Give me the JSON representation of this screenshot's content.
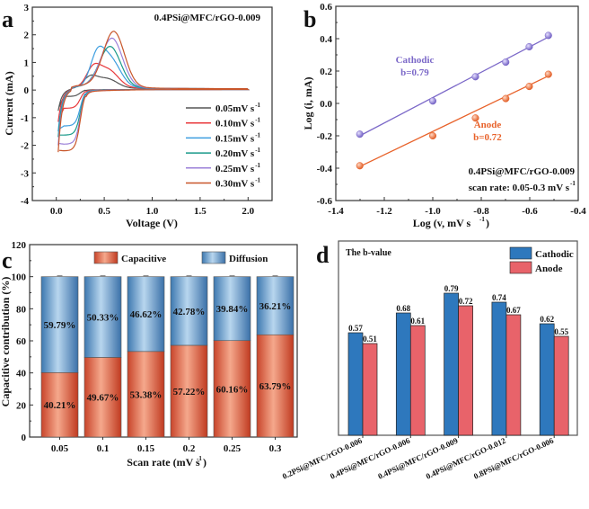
{
  "chart_data": [
    {
      "panel": "a",
      "type": "line",
      "title": "0.4PSi@MFC/rGO-0.009",
      "xlabel": "Voltage (V)",
      "ylabel": "Current (mA)",
      "xlim": [
        -0.25,
        2.25
      ],
      "ylim": [
        -4,
        3
      ],
      "xticks": [
        "0.0",
        "0.5",
        "1.0",
        "1.5",
        "2.0"
      ],
      "xtick_values": [
        0.0,
        0.5,
        1.0,
        1.5,
        2.0
      ],
      "yticks": [
        "-4",
        "-3",
        "-2",
        "-1",
        "0",
        "1",
        "2",
        "3"
      ],
      "ytick_values": [
        -4,
        -3,
        -2,
        -1,
        0,
        1,
        2,
        3
      ],
      "legend_position": "bottom-right",
      "series": [
        {
          "name": "0.05mV s-1",
          "label_main": "0.05mV s",
          "label_sup": "-1",
          "color": "#555555",
          "anodic_peaks": [
            [
              0.35,
              0.37
            ],
            [
              0.52,
              0.37
            ]
          ],
          "cathodic_min": [
            0.17,
            -0.35
          ],
          "start_current": -0.8
        },
        {
          "name": "0.10mV s-1",
          "label_main": "0.10mV s",
          "label_sup": "-1",
          "color": "#e8393c",
          "anodic_peaks": [
            [
              0.38,
              0.6
            ],
            [
              0.53,
              0.7
            ]
          ],
          "cathodic_min": [
            0.17,
            -0.78
          ],
          "start_current": -1.2
        },
        {
          "name": "0.15mV s-1",
          "label_main": "0.15mV s",
          "label_sup": "-1",
          "color": "#3d9ee0",
          "anodic_peaks": [
            [
              0.42,
              0.9
            ],
            [
              0.55,
              1.13
            ]
          ],
          "cathodic_min": [
            0.08,
            -1.42
          ],
          "start_current": -1.55
        },
        {
          "name": "0.20mV s-1",
          "label_main": "0.20mV s",
          "label_sup": "-1",
          "color": "#1a9a8a",
          "anodic_peaks": [
            [
              0.56,
              1.53
            ]
          ],
          "cathodic_min": [
            0.05,
            -1.75
          ],
          "start_current": -1.75
        },
        {
          "name": "0.25mV s-1",
          "label_main": "0.25mV s",
          "label_sup": "-1",
          "color": "#9b80d8",
          "anodic_peaks": [
            [
              0.58,
              1.83
            ]
          ],
          "cathodic_min": [
            0.03,
            -2.08
          ],
          "start_current": -2.05
        },
        {
          "name": "0.30mV s-1",
          "label_main": "0.30mV s",
          "label_sup": "-1",
          "color": "#c8562a",
          "anodic_peaks": [
            [
              0.6,
              2.08
            ]
          ],
          "cathodic_min": [
            0.02,
            -2.32
          ],
          "start_current": -2.3
        }
      ]
    },
    {
      "panel": "b",
      "type": "scatter",
      "xlabel_main": "Log (v, mV s",
      "xlabel_sup": "-1",
      "xlabel_end": ")",
      "ylabel": "Log (i, mA)",
      "xlim": [
        -1.4,
        -0.4
      ],
      "ylim": [
        -0.6,
        0.6
      ],
      "xticks": [
        "-1.4",
        "-1.2",
        "-1.0",
        "-0.8",
        "-0.6",
        "-0.4"
      ],
      "xtick_values": [
        -1.4,
        -1.2,
        -1.0,
        -0.8,
        -0.6,
        -0.4
      ],
      "yticks": [
        "-0.6",
        "-0.4",
        "-0.2",
        "0.0",
        "0.2",
        "0.4",
        "0.6"
      ],
      "ytick_values": [
        -0.6,
        -0.4,
        -0.2,
        0.0,
        0.2,
        0.4,
        0.6
      ],
      "series": [
        {
          "name": "Cathodic",
          "b_label": "b=0.79",
          "color": "#7b68c8",
          "x": [
            -1.301,
            -1.0,
            -0.824,
            -0.699,
            -0.602,
            -0.523
          ],
          "y": [
            -0.19,
            0.015,
            0.165,
            0.255,
            0.35,
            0.42
          ],
          "fit": [
            [
              -1.301,
              -0.2
            ],
            [
              -0.523,
              0.41
            ]
          ]
        },
        {
          "name": "Anode",
          "b_label": "b=0.72",
          "color": "#e8622a",
          "x": [
            -1.301,
            -1.0,
            -0.824,
            -0.699,
            -0.602,
            -0.523
          ],
          "y": [
            -0.385,
            -0.2,
            -0.09,
            0.03,
            0.105,
            0.18
          ],
          "fit": [
            [
              -1.301,
              -0.39
            ],
            [
              -0.523,
              0.17
            ]
          ]
        }
      ],
      "annotation_line1": "0.4PSi@MFC/rGO-0.009",
      "annotation_line2_main": "scan rate: 0.05-0.3 mV s",
      "annotation_line2_sup": "-1"
    },
    {
      "panel": "c",
      "type": "bar",
      "stacked": true,
      "xlabel_main": "Scan rate (mV s",
      "xlabel_sup": "-1",
      "xlabel_end": ")",
      "ylabel": "Capacitive contribution (%)",
      "ylim": [
        0,
        120
      ],
      "yticks": [
        "0",
        "20",
        "40",
        "60",
        "80",
        "100",
        "120"
      ],
      "ytick_values": [
        0,
        20,
        40,
        60,
        80,
        100,
        120
      ],
      "categories": [
        "0.05",
        "0.1",
        "0.15",
        "0.2",
        "0.25",
        "0.3"
      ],
      "legend_position": "top",
      "series": [
        {
          "name": "Capacitive",
          "color": "#e8684a",
          "values": [
            40.21,
            49.67,
            53.38,
            57.22,
            60.16,
            63.79
          ],
          "labels": [
            "40.21%",
            "49.67%",
            "53.38%",
            "57.22%",
            "60.16%",
            "63.79%"
          ]
        },
        {
          "name": "Diffusion",
          "color": "#5b9bd0",
          "values": [
            59.79,
            50.33,
            46.62,
            42.78,
            39.84,
            36.21
          ],
          "labels": [
            "59.79%",
            "50.33%",
            "46.62%",
            "42.78%",
            "39.84%",
            "36.21%"
          ]
        }
      ]
    },
    {
      "panel": "d",
      "type": "bar",
      "title": "The b-value",
      "ylim": [
        0,
        1.08
      ],
      "categories": [
        "0.2PSi@MFC/rGO-0.006",
        "0.4PSi@MFC/rGO-0.006",
        "0.4PSi@MFC/rGO-0.009",
        "0.4PSi@MFC/rGO-0.012",
        "0.8PSi@MFC/rGO-0.006"
      ],
      "legend_position": "top-right",
      "series": [
        {
          "name": "Cathodic",
          "color": "#2e78bd",
          "values": [
            0.57,
            0.68,
            0.79,
            0.74,
            0.62
          ],
          "labels": [
            "0.57",
            "0.68",
            "0.79",
            "0.74",
            "0.62"
          ]
        },
        {
          "name": "Anode",
          "color": "#e8636a",
          "values": [
            0.51,
            0.61,
            0.72,
            0.67,
            0.55
          ],
          "labels": [
            "0.51",
            "0.61",
            "0.72",
            "0.67",
            "0.55"
          ]
        }
      ]
    }
  ]
}
